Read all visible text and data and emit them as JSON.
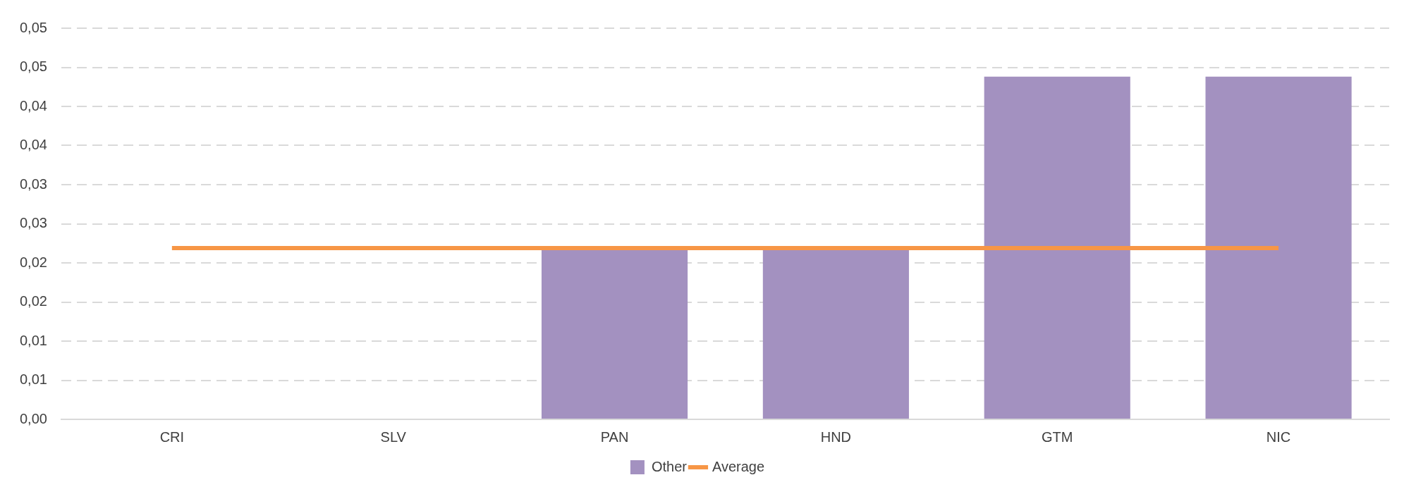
{
  "chart_data": {
    "type": "bar",
    "categories": [
      "CRI",
      "SLV",
      "PAN",
      "HND",
      "GTM",
      "NIC"
    ],
    "series": [
      {
        "name": "Other",
        "color": "#a391c0",
        "values": [
          0,
          0,
          0.0217,
          0.0217,
          0.0438,
          0.0438
        ]
      },
      {
        "name": "Average",
        "type": "line",
        "color": "#f79646",
        "values": [
          0.0219,
          0.0219,
          0.0219,
          0.0219,
          0.0219,
          0.0219
        ]
      }
    ],
    "ylim": [
      0,
      0.05
    ],
    "yticks": [
      {
        "value": 0,
        "label": "0,00"
      },
      {
        "value": 0.005,
        "label": "0,01"
      },
      {
        "value": 0.01,
        "label": "0,01"
      },
      {
        "value": 0.015,
        "label": "0,02"
      },
      {
        "value": 0.02,
        "label": "0,02"
      },
      {
        "value": 0.025,
        "label": "0,03"
      },
      {
        "value": 0.03,
        "label": "0,03"
      },
      {
        "value": 0.035,
        "label": "0,04"
      },
      {
        "value": 0.04,
        "label": "0,04"
      },
      {
        "value": 0.045,
        "label": "0,05"
      },
      {
        "value": 0.05,
        "label": "0,05"
      }
    ],
    "grid": "y",
    "legend": "bottom",
    "marker": "none"
  }
}
